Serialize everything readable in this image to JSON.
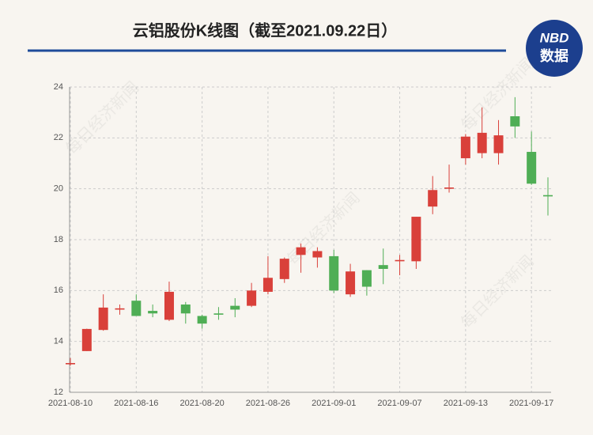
{
  "chart_data": {
    "type": "candlestick",
    "title": "云铝股份K线图（截至2021.09.22日）",
    "logo": {
      "top": "NBD",
      "bottom": "数据"
    },
    "watermark": "每日经济新闻",
    "categories": [
      "2021-08-10",
      null,
      null,
      null,
      "2021-08-16",
      null,
      null,
      null,
      "2021-08-20",
      null,
      null,
      null,
      "2021-08-26",
      null,
      null,
      null,
      "2021-09-01",
      null,
      null,
      null,
      "2021-09-07",
      null,
      null,
      null,
      "2021-09-13",
      null,
      null,
      null,
      "2021-09-17",
      null
    ],
    "open": [
      13.1,
      13.62,
      14.45,
      15.25,
      15.6,
      15.2,
      14.85,
      15.45,
      15.0,
      15.1,
      15.4,
      15.4,
      15.95,
      16.45,
      17.4,
      17.3,
      17.35,
      15.85,
      16.8,
      17.0,
      17.15,
      17.15,
      19.3,
      20.0,
      21.2,
      21.4,
      21.4,
      22.85,
      21.45,
      19.75
    ],
    "high": [
      13.35,
      14.5,
      15.85,
      15.45,
      15.85,
      15.45,
      16.35,
      15.55,
      15.05,
      15.35,
      15.7,
      16.3,
      17.35,
      17.3,
      17.85,
      17.7,
      17.6,
      17.05,
      16.8,
      17.65,
      17.4,
      18.9,
      20.5,
      20.95,
      22.15,
      23.2,
      22.7,
      23.6,
      22.25,
      20.45
    ],
    "low": [
      13.05,
      13.62,
      14.42,
      15.05,
      15.0,
      14.95,
      14.8,
      14.7,
      14.5,
      14.85,
      14.95,
      15.35,
      15.85,
      16.3,
      16.7,
      16.9,
      15.9,
      15.75,
      15.8,
      16.25,
      16.6,
      16.85,
      19.0,
      19.85,
      20.95,
      21.2,
      20.95,
      22.0,
      20.15,
      18.95
    ],
    "close": [
      13.15,
      14.49,
      15.33,
      15.3,
      15.0,
      15.1,
      15.95,
      15.1,
      14.7,
      15.05,
      15.25,
      16.0,
      16.5,
      17.25,
      17.7,
      17.55,
      16.0,
      16.75,
      16.15,
      16.85,
      17.2,
      18.9,
      19.95,
      20.05,
      22.05,
      22.2,
      22.1,
      22.45,
      20.2,
      19.7
    ],
    "up_color": "#d9403a",
    "down_color": "#4fae55",
    "ylim": [
      12,
      24
    ],
    "yticks": [
      12,
      14,
      16,
      18,
      20,
      22,
      24
    ],
    "grid": true
  }
}
